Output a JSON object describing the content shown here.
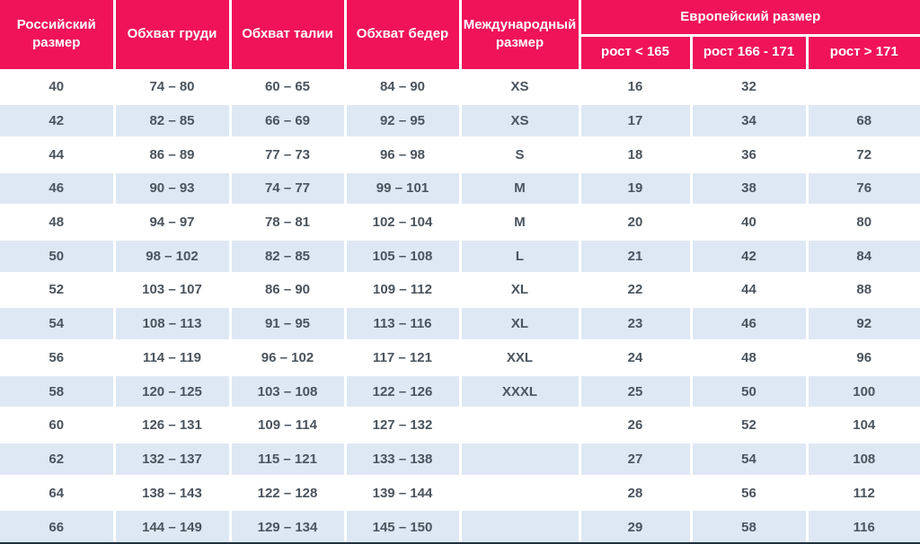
{
  "colors": {
    "header_bg": "#f0135a",
    "header_text": "#ffffff",
    "stripe_bg": "#dee8f5",
    "row_bg": "#ffffff",
    "body_text": "#4a545e",
    "separator": "#ffffff",
    "bottom_border": "#21303f"
  },
  "chart_data": {
    "type": "table",
    "header": {
      "russian_size": "Российский размер",
      "chest": "Обхват груди",
      "waist": "Обхват талии",
      "hips": "Обхват бедер",
      "international_size": "Международный размер",
      "european_size": "Европейский размер",
      "height_subcolumns": [
        "рост < 165",
        "рост 166 - 171",
        "рост > 171"
      ]
    },
    "rows": [
      [
        "40",
        "74 – 80",
        "60 – 65",
        "84 – 90",
        "XS",
        "16",
        "32",
        ""
      ],
      [
        "42",
        "82 – 85",
        "66 – 69",
        "92 – 95",
        "XS",
        "17",
        "34",
        "68"
      ],
      [
        "44",
        "86 – 89",
        "77 – 73",
        "96 – 98",
        "S",
        "18",
        "36",
        "72"
      ],
      [
        "46",
        "90 – 93",
        "74 – 77",
        "99 – 101",
        "M",
        "19",
        "38",
        "76"
      ],
      [
        "48",
        "94 – 97",
        "78 – 81",
        "102 – 104",
        "M",
        "20",
        "40",
        "80"
      ],
      [
        "50",
        "98 – 102",
        "82 – 85",
        "105 – 108",
        "L",
        "21",
        "42",
        "84"
      ],
      [
        "52",
        "103 – 107",
        "86 – 90",
        "109 – 112",
        "XL",
        "22",
        "44",
        "88"
      ],
      [
        "54",
        "108 – 113",
        "91 – 95",
        "113 – 116",
        "XL",
        "23",
        "46",
        "92"
      ],
      [
        "56",
        "114 – 119",
        "96 – 102",
        "117 – 121",
        "XXL",
        "24",
        "48",
        "96"
      ],
      [
        "58",
        "120 – 125",
        "103 – 108",
        "122 – 126",
        "XXXL",
        "25",
        "50",
        "100"
      ],
      [
        "60",
        "126 – 131",
        "109 – 114",
        "127 – 132",
        "",
        "26",
        "52",
        "104"
      ],
      [
        "62",
        "132 – 137",
        "115 – 121",
        "133 – 138",
        "",
        "27",
        "54",
        "108"
      ],
      [
        "64",
        "138 – 143",
        "122 – 128",
        "139 – 144",
        "",
        "28",
        "56",
        "112"
      ],
      [
        "66",
        "144 – 149",
        "129 – 134",
        "145 – 150",
        "",
        "29",
        "58",
        "116"
      ]
    ]
  }
}
